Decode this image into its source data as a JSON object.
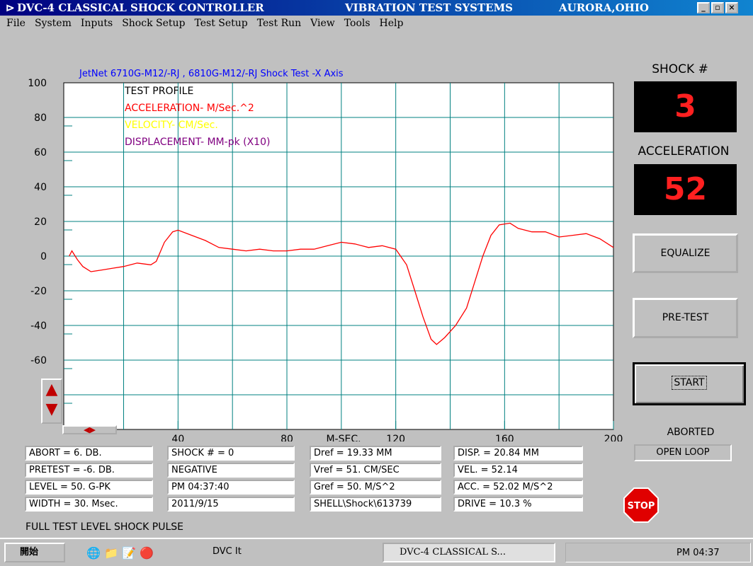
{
  "window": {
    "title_parts": [
      "DVC-4 CLASSICAL SHOCK CONTROLLER",
      "VIBRATION TEST SYSTEMS",
      "AURORA,OHIO"
    ]
  },
  "menu": [
    "File",
    "System",
    "Inputs",
    "Shock Setup",
    "Test Setup",
    "Test Run",
    "View",
    "Tools",
    "Help"
  ],
  "chart": {
    "type": "line",
    "title": "JetNet 6710G-M12/-RJ , 6810G-M12/-RJ  Shock Test -X Axis",
    "legend": [
      {
        "label": "TEST PROFILE",
        "color": "#000000"
      },
      {
        "label": "ACCELERATION- M/Sec.^2",
        "color": "#ff0000"
      },
      {
        "label": "VELOCITY- CM/Sec.",
        "color": "#ffff00"
      },
      {
        "label": "DISPLACEMENT- MM-pk (X10)",
        "color": "#800080"
      }
    ],
    "x_label": "M-SEC.",
    "xlim": [
      -2,
      200
    ],
    "ylim": [
      -100,
      100
    ],
    "xticks": [
      40,
      80,
      120,
      160,
      200
    ],
    "yticks": [
      -60,
      -40,
      -20,
      0,
      20,
      40,
      60,
      80,
      100
    ],
    "xgrid": [
      20,
      40,
      60,
      80,
      100,
      120,
      140,
      160,
      180
    ],
    "ygrid": [
      -80,
      -60,
      -40,
      -20,
      0,
      20,
      40,
      60,
      80
    ],
    "x": [
      0,
      1,
      3,
      5,
      8,
      12,
      16,
      20,
      25,
      30,
      32,
      35,
      38,
      40,
      45,
      50,
      55,
      60,
      65,
      70,
      75,
      80,
      85,
      90,
      95,
      100,
      105,
      110,
      115,
      120,
      124,
      127,
      130,
      133,
      135,
      138,
      142,
      146,
      149,
      152,
      155,
      158,
      162,
      165,
      170,
      175,
      180,
      185,
      190,
      195,
      200
    ],
    "series": [
      {
        "color": "#ff0000",
        "values": [
          0,
          3,
          -2,
          -6,
          -9,
          -8,
          -7,
          -6,
          -4,
          -5,
          -3,
          8,
          14,
          15,
          12,
          9,
          5,
          4,
          3,
          4,
          3,
          3,
          4,
          4,
          6,
          8,
          7,
          5,
          6,
          4,
          -5,
          -20,
          -35,
          -48,
          -51,
          -47,
          -40,
          -30,
          -15,
          0,
          12,
          18,
          19,
          16,
          14,
          14,
          11,
          12,
          13,
          10,
          5
        ]
      }
    ]
  },
  "right_panel": {
    "shock_label": "SHOCK #",
    "shock_value": "3",
    "accel_label": "ACCELERATION",
    "accel_value": "52",
    "buttons": [
      "EQUALIZE",
      "PRE-TEST",
      "START"
    ],
    "status": "ABORTED",
    "loop": "OPEN LOOP",
    "stop": "STOP"
  },
  "info": [
    [
      "ABORT = 6. DB.",
      "PRETEST = -6. DB.",
      "LEVEL = 50. G-PK",
      "WIDTH = 30. Msec."
    ],
    [
      "SHOCK # = 0",
      "NEGATIVE",
      "PM 04:37:40",
      "2011/9/15"
    ],
    [
      "Dref = 19.33 MM",
      "Vref = 51. CM/SEC",
      "Gref = 50. M/S^2",
      "SHELL\\Shock\\613739"
    ],
    [
      "DISP. = 20.84 MM",
      "VEL. = 52.14",
      "ACC. = 52.02 M/S^2",
      "DRIVE = 10.3 %"
    ]
  ],
  "status_bar": "FULL TEST LEVEL SHOCK PULSE",
  "taskbar": {
    "start": "開始",
    "app1": "DVC It",
    "task": "DVC-4 CLASSICAL S...",
    "clock": "PM 04:37"
  }
}
